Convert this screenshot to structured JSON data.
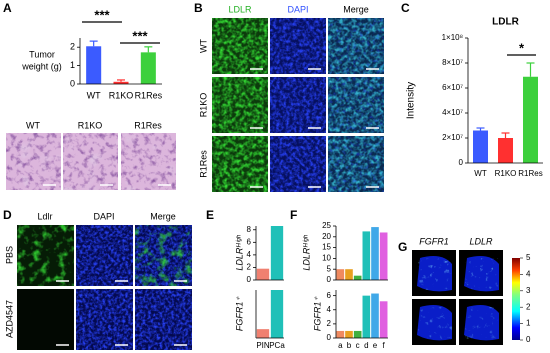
{
  "chart_data": [
    {
      "type": "bar",
      "ylabel_lines": [
        "Tumor",
        "weight (g)"
      ],
      "categories": [
        "WT",
        "R1KO",
        "R1Res"
      ],
      "values": [
        2.05,
        0.12,
        1.72
      ],
      "errors": [
        0.28,
        0.1,
        0.3
      ],
      "colors": [
        "#3b5bff",
        "#ff3030",
        "#3cd03c"
      ],
      "ylim": [
        0,
        2.5
      ],
      "yticks": [
        0,
        1,
        2
      ],
      "annotations": [
        "***",
        "***"
      ]
    },
    {
      "type": "bar",
      "title": "LDLR",
      "ylabel": "Intensity",
      "categories": [
        "WT",
        "R1KO",
        "R1Res"
      ],
      "values": [
        26000000,
        20000000,
        69000000
      ],
      "errors": [
        2000000,
        4000000,
        11000000
      ],
      "colors": [
        "#3b5bff",
        "#ff3030",
        "#3cd03c"
      ],
      "ylim": [
        0,
        100000000
      ],
      "yticks": [
        0,
        {
          "value": 20000000,
          "label": "2×10⁷"
        },
        {
          "value": 40000000,
          "label": "4×10⁷"
        },
        {
          "value": 60000000,
          "label": "6×10⁷"
        },
        {
          "value": 80000000,
          "label": "8×10⁷"
        },
        {
          "value": 100000000,
          "label": "1×10⁸"
        }
      ],
      "annotations": [
        "*"
      ]
    },
    {
      "type": "bar",
      "ylabel": "LDLRᴴⁱᵍʰ",
      "categories": [
        null,
        null
      ],
      "values": [
        1.8,
        8.6
      ],
      "colors": [
        "#f08070",
        "#20c0b8"
      ],
      "ylim": [
        0,
        8.6
      ],
      "yticks": [
        0,
        2,
        4,
        6,
        8
      ]
    },
    {
      "type": "bar",
      "ylabel": "FGFR1⁺",
      "categories": [
        "PIN",
        "PCa"
      ],
      "values": [
        1.2,
        6.5
      ],
      "colors": [
        "#f08070",
        "#20c0b8"
      ],
      "ylim": [
        0,
        6.5
      ],
      "yticks": []
    },
    {
      "type": "bar",
      "ylabel": "LDLRᴴⁱᵍʰ",
      "categories": [
        null,
        null,
        null,
        null,
        null,
        null
      ],
      "values": [
        5,
        5,
        2,
        22.5,
        24.5,
        22
      ],
      "colors": [
        "#f08a60",
        "#e8a020",
        "#40b040",
        "#20c0b8",
        "#40a8e8",
        "#e060e0"
      ],
      "ylim": [
        0,
        25
      ],
      "yticks": [
        0,
        5,
        10,
        15,
        20,
        25
      ]
    },
    {
      "type": "bar",
      "ylabel": "FGFR1⁺",
      "categories": [
        "a",
        "b",
        "c",
        "d",
        "e",
        "f"
      ],
      "values": [
        1,
        1,
        1,
        6,
        6.3,
        5.2
      ],
      "colors": [
        "#f08a60",
        "#e8a020",
        "#40b040",
        "#20c0b8",
        "#40a8e8",
        "#e060e0"
      ],
      "ylim": [
        0,
        6.8
      ],
      "yticks": [
        0,
        2,
        4,
        6
      ]
    }
  ],
  "panels": {
    "A": {
      "letter": "A",
      "image_labels": [
        "WT",
        "R1KO",
        "R1Res"
      ]
    },
    "B": {
      "letter": "B",
      "columns": [
        "LDLR",
        "DAPI",
        "Merge"
      ],
      "rows": [
        "WT",
        "R1KO",
        "R1Res"
      ]
    },
    "C": {
      "letter": "C"
    },
    "D": {
      "letter": "D",
      "columns": [
        "Ldlr",
        "DAPI",
        "Merge"
      ],
      "rows": [
        "PBS",
        "AZD4547"
      ]
    },
    "E": {
      "letter": "E"
    },
    "F": {
      "letter": "F"
    },
    "G": {
      "letter": "G",
      "columns": [
        "FGFR1",
        "LDLR"
      ],
      "colorbar": {
        "lim": [
          0,
          5
        ],
        "ticks": [
          0,
          1,
          2,
          3,
          4,
          5
        ]
      }
    }
  }
}
